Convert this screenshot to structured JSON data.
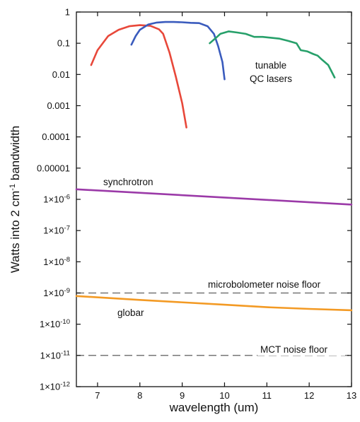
{
  "chart_data": {
    "type": "line",
    "xlabel": "wavelength (um)",
    "ylabel": "Watts into 2 cm-1 bandwidth",
    "xlim": [
      6.5,
      13
    ],
    "ylim_log10": [
      -12,
      0
    ],
    "y_scale": "log",
    "x_ticks": [
      7,
      8,
      9,
      10,
      11,
      12,
      13
    ],
    "y_ticks": [
      {
        "exp": 0,
        "label": "1"
      },
      {
        "exp": -1,
        "label": "0.1"
      },
      {
        "exp": -2,
        "label": "0.01"
      },
      {
        "exp": -3,
        "label": "0.001"
      },
      {
        "exp": -4,
        "label": "0.0001"
      },
      {
        "exp": -5,
        "label": "0.00001"
      },
      {
        "exp": -6,
        "label": "1x10-6"
      },
      {
        "exp": -7,
        "label": "1x10-7"
      },
      {
        "exp": -8,
        "label": "1x10-8"
      },
      {
        "exp": -9,
        "label": "1x10-9"
      },
      {
        "exp": -10,
        "label": "1x10-10"
      },
      {
        "exp": -11,
        "label": "1x10-11"
      },
      {
        "exp": -12,
        "label": "1x10-12"
      }
    ],
    "grid": false,
    "annotations": [
      {
        "id": "qc",
        "text_lines": [
          "tunable",
          "QC lasers"
        ]
      },
      {
        "id": "synchrotron",
        "text": "synchrotron"
      },
      {
        "id": "microbolometer",
        "text": "microbolometer noise floor"
      },
      {
        "id": "globar",
        "text": "globar"
      },
      {
        "id": "mct",
        "text": "MCT noise floor"
      }
    ],
    "series": [
      {
        "color": "#e8483a",
        "style": "solid",
        "x": [
          6.85,
          7.0,
          7.25,
          7.5,
          7.75,
          8.0,
          8.25,
          8.45,
          8.55,
          8.7,
          8.85,
          9.0,
          9.1
        ],
        "y": [
          0.02,
          0.06,
          0.17,
          0.27,
          0.35,
          0.38,
          0.36,
          0.28,
          0.2,
          0.05,
          0.0085,
          0.0012,
          0.0002
        ]
      },
      {
        "color": "#3a5bbd",
        "style": "solid",
        "x": [
          7.8,
          7.9,
          8.0,
          8.2,
          8.4,
          8.6,
          8.8,
          9.0,
          9.2,
          9.4,
          9.6,
          9.75,
          9.85,
          9.95,
          10.0
        ],
        "y": [
          0.09,
          0.17,
          0.27,
          0.4,
          0.46,
          0.48,
          0.48,
          0.47,
          0.45,
          0.44,
          0.35,
          0.2,
          0.08,
          0.025,
          0.007
        ]
      },
      {
        "color": "#27a06a",
        "style": "solid",
        "x": [
          9.65,
          9.8,
          9.9,
          10.1,
          10.3,
          10.5,
          10.7,
          10.9,
          11.1,
          11.3,
          11.5,
          11.7,
          11.8,
          11.95,
          12.1,
          12.2,
          12.3,
          12.45,
          12.6
        ],
        "y": [
          0.1,
          0.15,
          0.2,
          0.24,
          0.22,
          0.2,
          0.16,
          0.16,
          0.15,
          0.14,
          0.12,
          0.1,
          0.06,
          0.055,
          0.045,
          0.04,
          0.03,
          0.02,
          0.008
        ]
      },
      {
        "color": "#9b3aa8",
        "style": "solid",
        "x": [
          6.5,
          13.0
        ],
        "y": [
          2.1e-06,
          6.8e-07
        ]
      },
      {
        "color": "#f39a24",
        "style": "solid",
        "x": [
          6.5,
          8.0,
          10.0,
          11.0,
          12.0,
          13.0
        ],
        "y": [
          8e-10,
          6e-10,
          4.2e-10,
          3.5e-10,
          3.1e-10,
          2.8e-10
        ]
      },
      {
        "color": "#777777",
        "style": "dashed",
        "x": [
          6.5,
          13.0
        ],
        "y": [
          1e-09,
          1e-09
        ]
      },
      {
        "color": "#777777",
        "style": "dashed",
        "x": [
          6.5,
          13.0
        ],
        "y": [
          1e-11,
          1e-11
        ]
      }
    ]
  }
}
